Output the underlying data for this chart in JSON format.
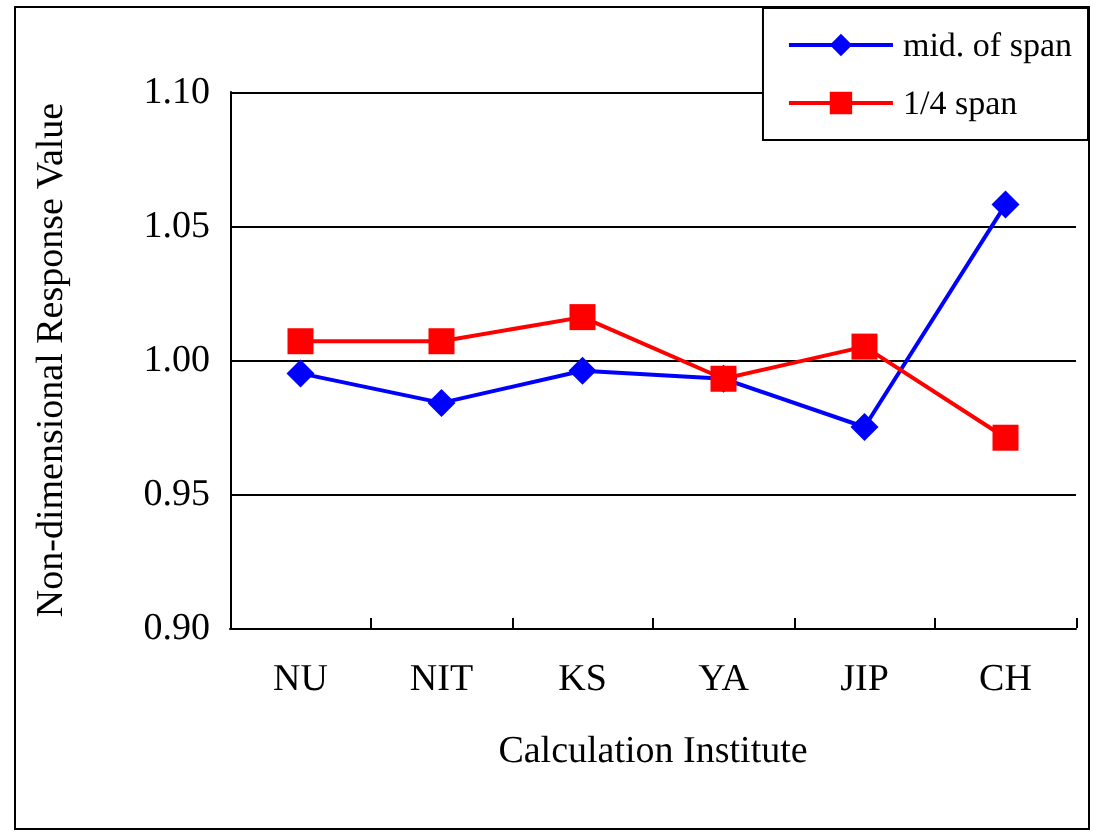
{
  "chart_data": {
    "type": "line",
    "xlabel": "Calculation Institute",
    "ylabel": "Non-dimensional Response Value",
    "categories": [
      "NU",
      "NIT",
      "KS",
      "YA",
      "JIP",
      "CH"
    ],
    "series": [
      {
        "name": "mid. of span",
        "color": "#0000ff",
        "marker": "diamond",
        "values": [
          0.995,
          0.984,
          0.996,
          0.993,
          0.975,
          1.058
        ]
      },
      {
        "name": "1/4 span",
        "color": "#ff0000",
        "marker": "square",
        "values": [
          1.007,
          1.007,
          1.016,
          0.993,
          1.005,
          0.971
        ]
      }
    ],
    "ylim": [
      0.9,
      1.1
    ],
    "yticks": [
      {
        "value": 0.9,
        "label": "0.90"
      },
      0.95,
      {
        "value": 1,
        "label": "1.00"
      },
      1.05,
      {
        "value": 1.1,
        "label": "1.10"
      }
    ],
    "grid": "y",
    "legend": "top right"
  }
}
